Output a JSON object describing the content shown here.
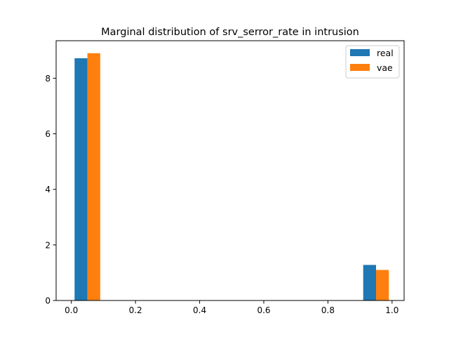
{
  "chart_data": {
    "type": "bar",
    "title": "Marginal distribution of srv_serror_rate in intrusion",
    "xlabel": "",
    "ylabel": "",
    "xlim": [
      -0.0475,
      1.0375
    ],
    "ylim": [
      0,
      9.35
    ],
    "xticks": [
      0.0,
      0.2,
      0.4,
      0.6,
      0.8,
      1.0
    ],
    "xtick_labels": [
      "0.0",
      "0.2",
      "0.4",
      "0.6",
      "0.8",
      "1.0"
    ],
    "yticks": [
      0,
      2,
      4,
      6,
      8
    ],
    "ytick_labels": [
      "0",
      "2",
      "4",
      "6",
      "8"
    ],
    "grid": false,
    "legend_position": "top-right",
    "bin_edges": [
      0.0,
      0.1,
      0.2,
      0.3,
      0.4,
      0.5,
      0.6,
      0.7,
      0.8,
      0.9,
      1.0
    ],
    "series": [
      {
        "name": "real",
        "color": "#1f77b4",
        "values": [
          8.72,
          0,
          0,
          0,
          0,
          0,
          0,
          0,
          0,
          1.28
        ]
      },
      {
        "name": "vae",
        "color": "#ff7f0e",
        "values": [
          8.9,
          0,
          0,
          0,
          0,
          0,
          0,
          0,
          0,
          1.1
        ]
      }
    ]
  }
}
